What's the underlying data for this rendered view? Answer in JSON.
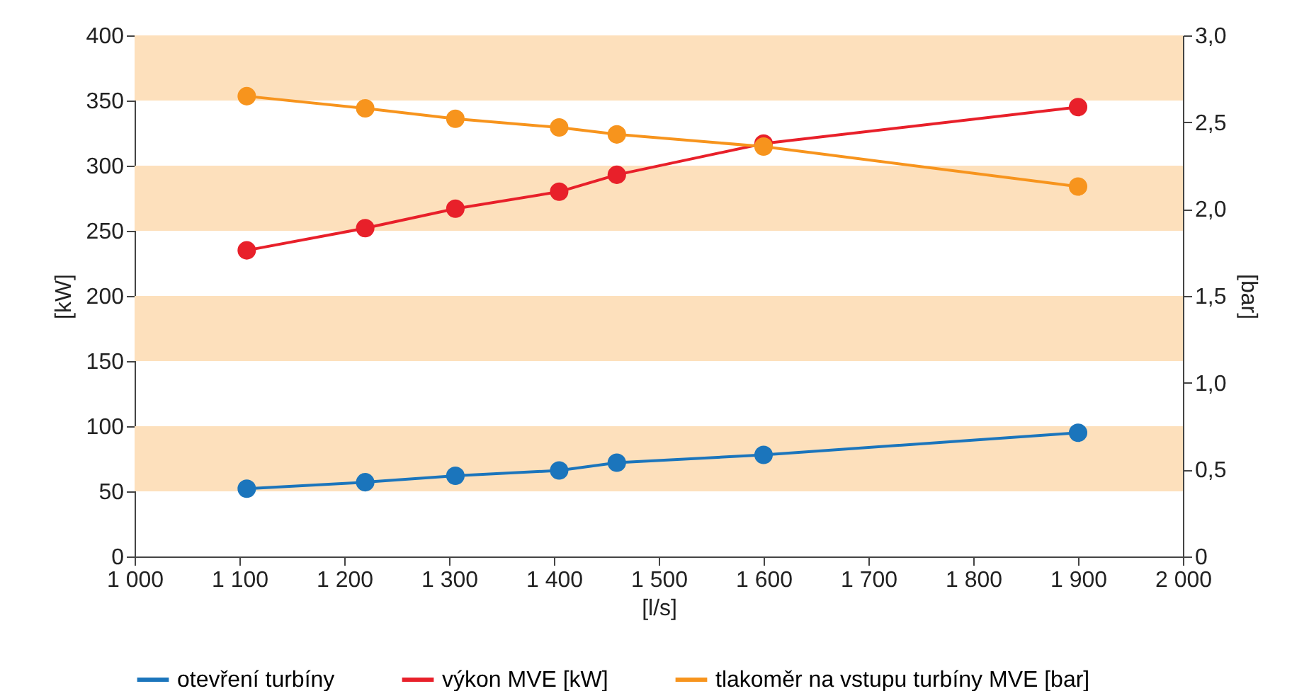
{
  "chart_data": {
    "type": "line",
    "xlabel": "[l/s]",
    "ylabel": "[kW]",
    "y2label": "[bar]",
    "xlim": [
      1000,
      2000
    ],
    "xticks": [
      {
        "value": 1000,
        "label": "1 000"
      },
      {
        "value": 1100,
        "label": "1 100"
      },
      {
        "value": 1200,
        "label": "1 200"
      },
      {
        "value": 1300,
        "label": "1 300"
      },
      {
        "value": 1400,
        "label": "1 400"
      },
      {
        "value": 1500,
        "label": "1 500"
      },
      {
        "value": 1600,
        "label": "1 600"
      },
      {
        "value": 1700,
        "label": "1 700"
      },
      {
        "value": 1800,
        "label": "1 800"
      },
      {
        "value": 1900,
        "label": "1 900"
      },
      {
        "value": 2000,
        "label": "2 000"
      }
    ],
    "ylim": [
      0,
      400
    ],
    "yticks": [
      0,
      50,
      100,
      150,
      200,
      250,
      300,
      350,
      400
    ],
    "y2lim": [
      0,
      3
    ],
    "y2ticks": [
      {
        "value": 0,
        "label": "0"
      },
      {
        "value": 0.5,
        "label": "0,5"
      },
      {
        "value": 1,
        "label": "1,0"
      },
      {
        "value": 1.5,
        "label": "1,5"
      },
      {
        "value": 2,
        "label": "2,0"
      },
      {
        "value": 2.5,
        "label": "2,5"
      },
      {
        "value": 3,
        "label": "3,0"
      }
    ],
    "x": [
      1107,
      1220,
      1306,
      1405,
      1460,
      1600,
      1900
    ],
    "series": [
      {
        "name": "otevření turbíny",
        "color": "#1b75bc",
        "values": [
          52,
          57,
          62,
          66,
          72,
          78,
          95
        ]
      },
      {
        "name": "výkon MVE [kW]",
        "color": "#e8202a",
        "values": [
          235,
          252,
          267,
          280,
          293,
          317,
          345
        ]
      },
      {
        "name": "tlakoměr na vstupu turbíny MVE [bar]",
        "color": "#f7941d",
        "axis": "y2",
        "values": [
          2.65,
          2.58,
          2.52,
          2.47,
          2.43,
          2.36,
          2.13
        ]
      }
    ],
    "bands": [
      {
        "axis": "y",
        "from": 50,
        "to": 100,
        "color": "#fde0bc"
      },
      {
        "axis": "y",
        "from": 150,
        "to": 200,
        "color": "#fde0bc"
      },
      {
        "axis": "y",
        "from": 250,
        "to": 300,
        "color": "#fde0bc"
      },
      {
        "axis": "y",
        "from": 350,
        "to": 400,
        "color": "#fde0bc"
      }
    ],
    "grid": false,
    "legend": "bottom",
    "marker": "circle",
    "line_style": "solid"
  }
}
